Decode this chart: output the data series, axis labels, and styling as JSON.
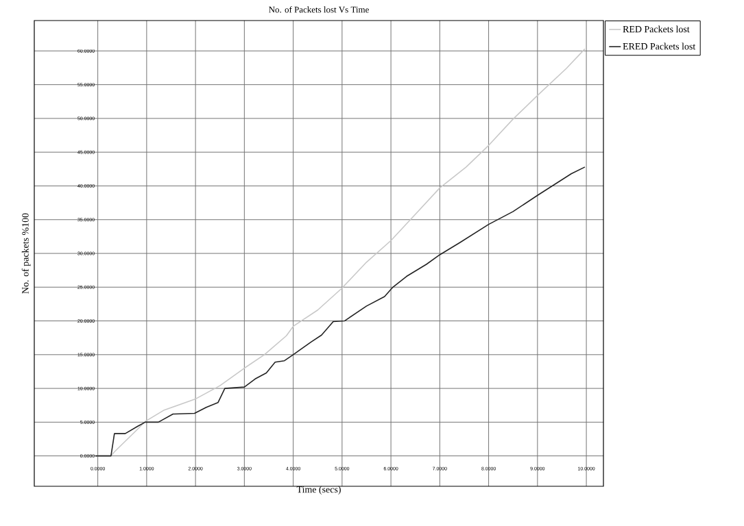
{
  "chart_data": {
    "type": "line",
    "title": "No. of Packets lost Vs Time",
    "xlabel": "Time (secs)",
    "ylabel": "No. of packets %100",
    "xlim": [
      -1.3,
      10.35
    ],
    "ylim": [
      -4.5,
      64.5
    ],
    "xticks": [
      {
        "value": 0,
        "label": "0.0000"
      },
      {
        "value": 1,
        "label": "1.0000"
      },
      {
        "value": 2,
        "label": "2.0000"
      },
      {
        "value": 3,
        "label": "3.0000"
      },
      {
        "value": 4,
        "label": "4.0000"
      },
      {
        "value": 5,
        "label": "5.0000"
      },
      {
        "value": 6,
        "label": "6.0000"
      },
      {
        "value": 7,
        "label": "7.0000"
      },
      {
        "value": 8,
        "label": "8.0000"
      },
      {
        "value": 9,
        "label": "9.0000"
      },
      {
        "value": 10,
        "label": "10.0000"
      }
    ],
    "yticks": [
      {
        "value": 0,
        "label": "0.0000"
      },
      {
        "value": 5,
        "label": "5.0000"
      },
      {
        "value": 10,
        "label": "10.0000"
      },
      {
        "value": 15,
        "label": "15.0000"
      },
      {
        "value": 20,
        "label": "20.0000"
      },
      {
        "value": 25,
        "label": "25.0000"
      },
      {
        "value": 30,
        "label": "30.0000"
      },
      {
        "value": 35,
        "label": "35.0000"
      },
      {
        "value": 40,
        "label": "40.0000"
      },
      {
        "value": 45,
        "label": "45.0000"
      },
      {
        "value": 50,
        "label": "50.0000"
      },
      {
        "value": 55,
        "label": "55.0000"
      },
      {
        "value": 60,
        "label": "60.0000"
      }
    ],
    "grid": true,
    "legend": "top right",
    "series": [
      {
        "name": "RED Packets lost",
        "color": "#c8c8c8",
        "x": [
          -0.05,
          0.27,
          0.34,
          0.82,
          0.97,
          1.36,
          1.99,
          2.5,
          3.0,
          3.41,
          3.86,
          4.0,
          4.5,
          4.99,
          5.5,
          6.0,
          6.45,
          7.0,
          7.54,
          8.0,
          8.5,
          9.0,
          9.59,
          9.97
        ],
        "values": [
          0,
          0,
          0.6,
          4.0,
          5.1,
          6.8,
          8.4,
          10.4,
          13.0,
          15.0,
          17.8,
          19.2,
          21.6,
          24.8,
          28.7,
          31.9,
          35.4,
          39.7,
          42.8,
          46.0,
          49.9,
          53.4,
          57.4,
          60.3
        ]
      },
      {
        "name": "ERED Packets lost",
        "color": "#222222",
        "x": [
          -0.05,
          0.27,
          0.34,
          0.56,
          0.82,
          0.97,
          1.24,
          1.54,
          1.98,
          2.22,
          2.46,
          2.6,
          3.0,
          3.22,
          3.45,
          3.63,
          3.82,
          4.0,
          4.37,
          4.58,
          4.82,
          5.05,
          5.5,
          5.87,
          6.04,
          6.32,
          6.73,
          7.0,
          7.41,
          8.0,
          8.5,
          9.0,
          9.69,
          9.97
        ],
        "values": [
          0,
          0,
          3.3,
          3.3,
          4.4,
          5.0,
          5.0,
          6.2,
          6.3,
          7.2,
          7.9,
          10.0,
          10.2,
          11.4,
          12.3,
          13.9,
          14.1,
          15.0,
          16.9,
          17.9,
          19.9,
          20.0,
          22.2,
          23.6,
          25.0,
          26.6,
          28.4,
          29.8,
          31.6,
          34.3,
          36.2,
          38.6,
          41.8,
          42.8
        ]
      }
    ]
  }
}
